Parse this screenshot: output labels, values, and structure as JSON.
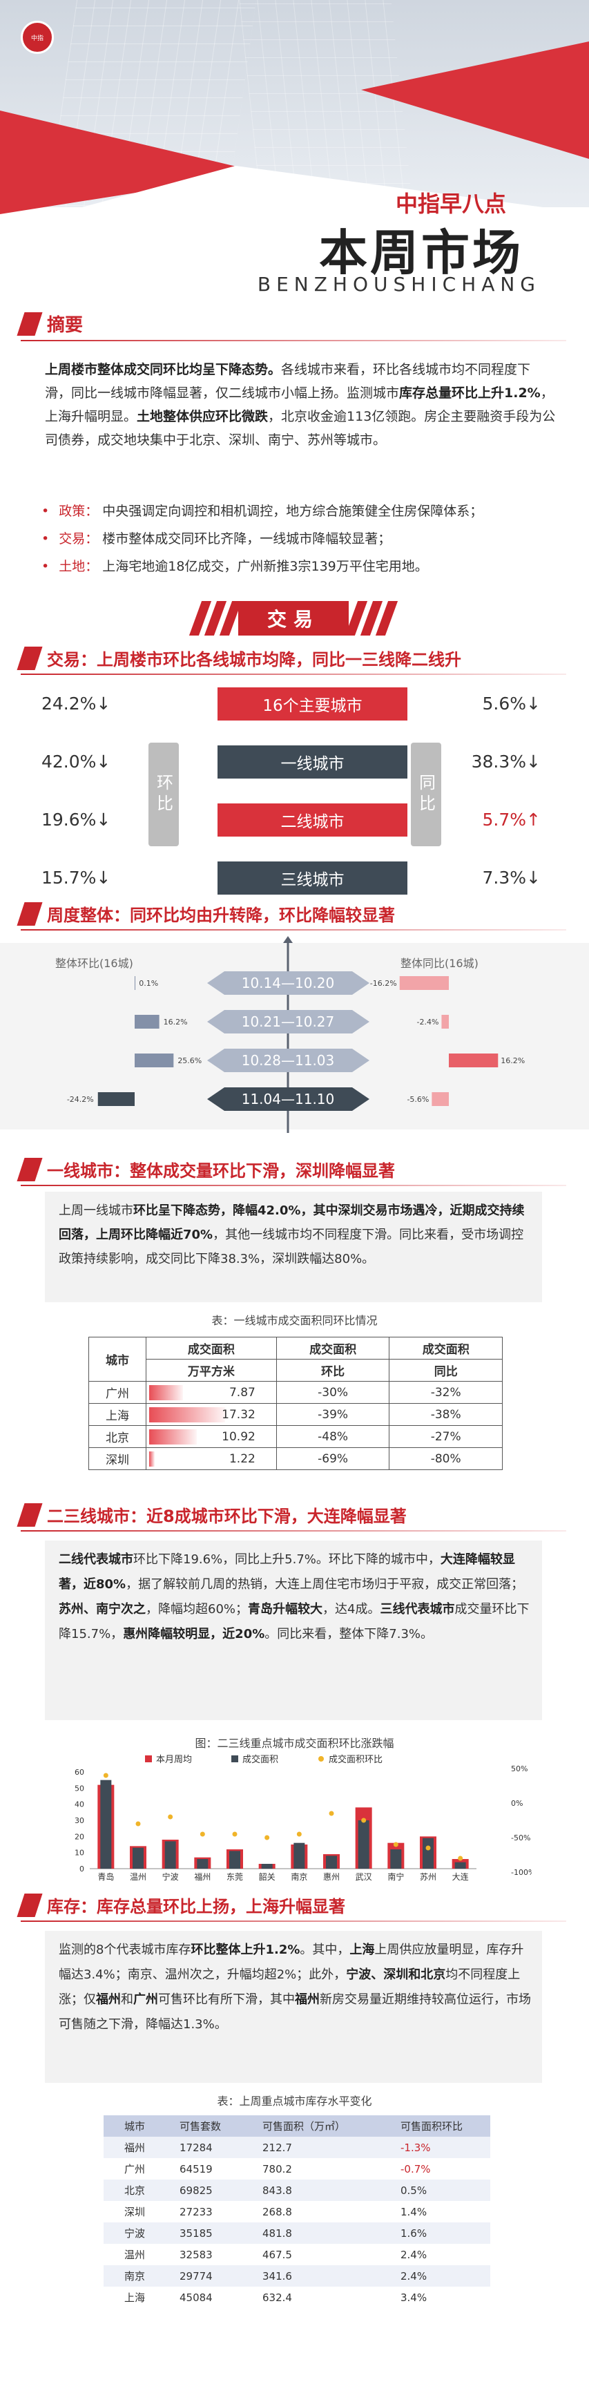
{
  "header": {
    "logo_text": "中指",
    "sub": "中指早八点",
    "title": "本周市场",
    "en": "BENZHOUSHICHANG"
  },
  "summary": {
    "heading": "摘要",
    "para_parts": [
      {
        "b": true,
        "t": "上周楼市整体成交同环比均呈下降态势。"
      },
      {
        "b": false,
        "t": "各线城市来看，环比各线城市均不同程度下滑，同比一线城市降幅显著，仅二线城市小幅上扬。监测城市"
      },
      {
        "b": true,
        "t": "库存总量环比上升1.2%"
      },
      {
        "b": false,
        "t": "，上海升幅明显。"
      },
      {
        "b": true,
        "t": "土地整体供应环比微跌"
      },
      {
        "b": false,
        "t": "，北京收金逾113亿领跑。房企主要融资手段为公司债券，成交地块集中于北京、深圳、南宁、苏州等城市。"
      }
    ],
    "bullets": [
      {
        "label": "政策：",
        "text": "中央强调定向调控和相机调控，地方综合施策健全住房保障体系；"
      },
      {
        "label": "交易：",
        "text": "楼市整体成交同环比齐降，一线城市降幅较显著；"
      },
      {
        "label": "土地：",
        "text": "上海宅地逾18亿成交，广州新推3宗139万平住宅用地。"
      }
    ]
  },
  "banner": "交易",
  "trade": {
    "heading": "交易：上周楼市环比各线城市均降，同比一三线降二线升",
    "left_label": "环比",
    "right_label": "同比",
    "rows": [
      {
        "name": "16个主要城市",
        "left": "24.2%↓",
        "right": "5.6%↓",
        "color": "#d9323b",
        "right_up": false
      },
      {
        "name": "一线城市",
        "left": "42.0%↓",
        "right": "38.3%↓",
        "color": "#3f4b56",
        "right_up": false
      },
      {
        "name": "二线城市",
        "left": "19.6%↓",
        "right": "5.7%↑",
        "color": "#d9323b",
        "right_up": true
      },
      {
        "name": "三线城市",
        "left": "15.7%↓",
        "right": "7.3%↓",
        "color": "#3f4b56",
        "right_up": false
      }
    ]
  },
  "weekly": {
    "heading": "周度整体：同环比均由升转降，环比降幅较显著",
    "left_title": "整体环比(16城)",
    "right_title": "整体同比(16城)",
    "weeks": [
      "10.14—10.20",
      "10.21—10.27",
      "10.28—11.03",
      "11.04—11.10"
    ],
    "mom": [
      0.1,
      16.2,
      25.6,
      -24.2
    ],
    "mom_labels": [
      "0.1%",
      "16.2%",
      "25.6%",
      "-24.2%"
    ],
    "yoy": [
      -16.2,
      -2.4,
      16.2,
      -5.6
    ],
    "yoy_labels": [
      "-16.2%",
      "-2.4%",
      "16.2%",
      "-5.6%"
    ]
  },
  "tier1": {
    "heading": "一线城市：整体成交量环比下滑，深圳降幅显著",
    "para_parts": [
      {
        "b": false,
        "t": "上周一线城市"
      },
      {
        "b": true,
        "t": "环比呈下降态势，降幅42.0%，其中深圳交易市场遇冷，近期成交持续回落，上周环比降幅近70%"
      },
      {
        "b": false,
        "t": "，其他一线城市均不同程度下滑。同比来看，受市场调控政策持续影响，成交同比下降38.3%，深圳跌幅达80%。"
      }
    ],
    "table_title": "表：一线城市成交面积同环比情况",
    "headers": [
      "城市",
      "成交面积",
      "成交面积",
      "成交面积"
    ],
    "subheaders": [
      "万平方米",
      "环比",
      "同比"
    ],
    "rows": [
      {
        "city": "广州",
        "area": "7.87",
        "mom": "-30%",
        "yoy": "-32%",
        "frac": 0.45
      },
      {
        "city": "上海",
        "area": "17.32",
        "mom": "-39%",
        "yoy": "-38%",
        "frac": 1.0
      },
      {
        "city": "北京",
        "area": "10.92",
        "mom": "-48%",
        "yoy": "-27%",
        "frac": 0.63
      },
      {
        "city": "深圳",
        "area": "1.22",
        "mom": "-69%",
        "yoy": "-80%",
        "frac": 0.07
      }
    ]
  },
  "tier23": {
    "heading": "二三线城市：近8成城市环比下滑，大连降幅显著",
    "para_parts": [
      {
        "b": true,
        "t": "二线代表城市"
      },
      {
        "b": false,
        "t": "环比下降19.6%，同比上升5.7%。环比下降的城市中，"
      },
      {
        "b": true,
        "t": "大连降幅较显著，近80%"
      },
      {
        "b": false,
        "t": "，据了解较前几周的热销，大连上周住宅市场归于平寂，成交正常回落；"
      },
      {
        "b": true,
        "t": "苏州、南宁次之"
      },
      {
        "b": false,
        "t": "，降幅均超60%；"
      },
      {
        "b": true,
        "t": "青岛升幅较大"
      },
      {
        "b": false,
        "t": "，达4成。"
      },
      {
        "b": true,
        "t": "三线代表城市"
      },
      {
        "b": false,
        "t": "成交量环比下降15.7%，"
      },
      {
        "b": true,
        "t": "惠州降幅较明显，近20%"
      },
      {
        "b": false,
        "t": "。同比来看，整体下降7.3%。"
      }
    ],
    "chart_title": "图：二三线重点城市成交面积环比涨跌幅"
  },
  "chart_data": {
    "type": "bar",
    "title": "图：二三线重点城市成交面积环比涨跌幅",
    "categories": [
      "青岛",
      "温州",
      "宁波",
      "福州",
      "东莞",
      "韶关",
      "南京",
      "惠州",
      "武汉",
      "南宁",
      "苏州",
      "大连"
    ],
    "series": [
      {
        "name": "本月周均",
        "values": [
          52,
          14,
          18,
          7,
          12,
          3,
          15,
          9,
          38,
          16,
          20,
          6
        ],
        "color": "#d9323b"
      },
      {
        "name": "成交面积",
        "values": [
          55,
          13,
          17,
          6,
          11,
          3,
          16,
          8,
          30,
          12,
          19,
          4
        ],
        "color": "#3f4b56"
      },
      {
        "name": "成交面积环比",
        "values": [
          40,
          -30,
          -20,
          -45,
          -45,
          -50,
          -45,
          -15,
          -25,
          -60,
          -65,
          -80
        ],
        "color": "#f0b429"
      }
    ],
    "yticks_left": [
      "60",
      "50",
      "40",
      "30",
      "20",
      "10",
      "0"
    ],
    "yticks_right": [
      "50%",
      "0%",
      "-50%",
      "-100%"
    ],
    "ylim": [
      0,
      60
    ],
    "ylim_right": [
      -100,
      50
    ],
    "legend": "top"
  },
  "inventory": {
    "heading": "库存：库存总量环比上扬，上海升幅显著",
    "para_parts": [
      {
        "b": false,
        "t": "监测的8个代表城市库存"
      },
      {
        "b": true,
        "t": "环比整体上升1.2%"
      },
      {
        "b": false,
        "t": "。其中，"
      },
      {
        "b": true,
        "t": "上海"
      },
      {
        "b": false,
        "t": "上周供应放量明显，库存升幅达3.4%；南京、温州次之，升幅均超2%；此外，"
      },
      {
        "b": true,
        "t": "宁波、深圳和北京"
      },
      {
        "b": false,
        "t": "均不同程度上涨；仅"
      },
      {
        "b": true,
        "t": "福州"
      },
      {
        "b": false,
        "t": "和"
      },
      {
        "b": true,
        "t": "广州"
      },
      {
        "b": false,
        "t": "可售环比有所下滑，其中"
      },
      {
        "b": true,
        "t": "福州"
      },
      {
        "b": false,
        "t": "新房交易量近期维持较高位运行，市场可售随之下滑，降幅达1.3%。"
      }
    ],
    "table_title": "表：上周重点城市库存水平变化",
    "headers": [
      "城市",
      "可售套数",
      "可售面积（万㎡）",
      "可售面积环比"
    ],
    "rows": [
      {
        "city": "福州",
        "units": "17284",
        "area": "212.7",
        "mom": "-1.3%",
        "neg": true
      },
      {
        "city": "广州",
        "units": "64519",
        "area": "780.2",
        "mom": "-0.7%",
        "neg": true
      },
      {
        "city": "北京",
        "units": "69825",
        "area": "843.8",
        "mom": "0.5%",
        "neg": false
      },
      {
        "city": "深圳",
        "units": "27233",
        "area": "268.8",
        "mom": "1.4%",
        "neg": false
      },
      {
        "city": "宁波",
        "units": "35185",
        "area": "481.8",
        "mom": "1.6%",
        "neg": false
      },
      {
        "city": "温州",
        "units": "32583",
        "area": "467.5",
        "mom": "2.4%",
        "neg": false
      },
      {
        "city": "南京",
        "units": "29774",
        "area": "341.6",
        "mom": "2.4%",
        "neg": false
      },
      {
        "city": "上海",
        "units": "45084",
        "area": "632.4",
        "mom": "3.4%",
        "neg": false
      }
    ]
  }
}
